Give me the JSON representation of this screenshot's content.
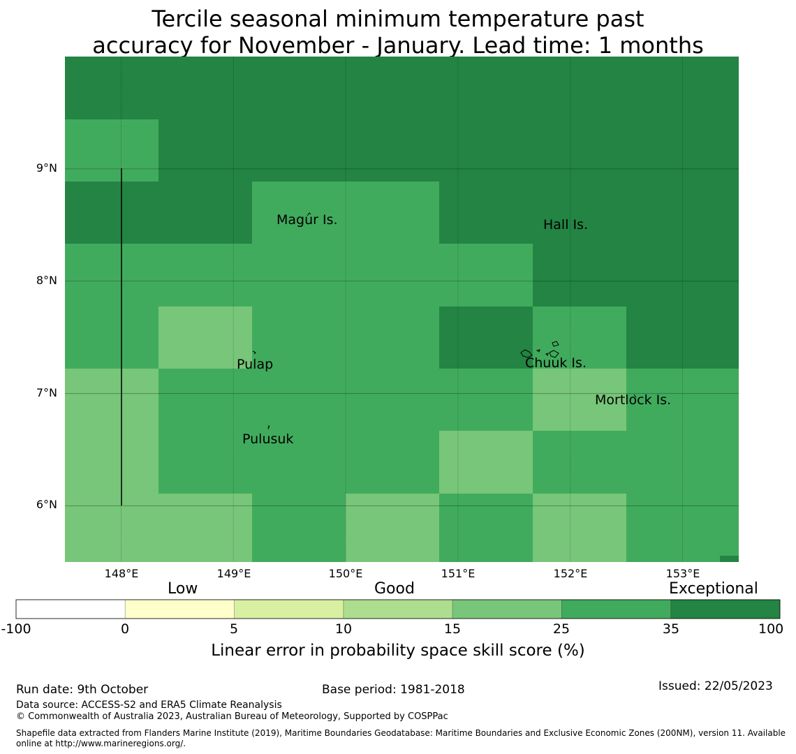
{
  "title": {
    "line1": "Tercile seasonal minimum temperature past",
    "line2": "accuracy for November - January. Lead time: 1 months"
  },
  "map": {
    "lon_range": [
      147.5,
      153.5
    ],
    "lat_range": [
      5.5,
      10.0
    ],
    "grid_cell_deg": 0.833,
    "cell_categories": [
      [
        "exceptional",
        "exceptional",
        "exceptional",
        "exceptional",
        "exceptional",
        "exceptional",
        "exceptional",
        "exceptional"
      ],
      [
        "good_high",
        "exceptional",
        "exceptional",
        "exceptional",
        "exceptional",
        "exceptional",
        "exceptional",
        "exceptional"
      ],
      [
        "exceptional",
        "exceptional",
        "good_high",
        "good_high",
        "exceptional",
        "exceptional",
        "exceptional",
        "exceptional"
      ],
      [
        "good_high",
        "good_high",
        "good_high",
        "good_high",
        "good_high",
        "exceptional",
        "exceptional",
        "exceptional"
      ],
      [
        "good_high",
        "good_mid",
        "good_high",
        "good_high",
        "exceptional",
        "good_high",
        "exceptional",
        "exceptional"
      ],
      [
        "good_mid",
        "good_high",
        "good_high",
        "good_high",
        "good_high",
        "good_mid",
        "good_high",
        "good_high"
      ],
      [
        "good_mid",
        "good_high",
        "good_high",
        "good_high",
        "good_mid",
        "good_high",
        "good_high",
        "good_high"
      ],
      [
        "good_mid",
        "good_mid",
        "good_high",
        "good_mid",
        "good_high",
        "good_mid",
        "good_high",
        "good_high"
      ]
    ],
    "lat_ticks": [
      "9°N",
      "8°N",
      "7°N",
      "6°N"
    ],
    "lon_ticks": [
      "148°E",
      "149°E",
      "150°E",
      "151°E",
      "152°E",
      "153°E"
    ],
    "places": [
      {
        "name": "Magur Is."
      },
      {
        "name": "Hall Is."
      },
      {
        "name": "Pulap"
      },
      {
        "name": "Chuuk Is."
      },
      {
        "name": "Mortlock Is."
      },
      {
        "name": "Pulusuk"
      }
    ]
  },
  "colorbar": {
    "categories": [
      "Low",
      "Good",
      "Exceptional"
    ],
    "ticks": [
      "-100",
      "0",
      "5",
      "10",
      "15",
      "25",
      "35",
      "100"
    ],
    "colors": [
      "#ffffff",
      "#ffffcc",
      "#d9f0a3",
      "#addd8e",
      "#78c679",
      "#41ab5d",
      "#238443"
    ],
    "label": "Linear error in probability space skill score (%)"
  },
  "palette": {
    "exceptional": "#238443",
    "good_high": "#41ab5d",
    "good_mid": "#78c679"
  },
  "footer": {
    "run_date": "Run date: 9th October",
    "base_period": "Base period: 1981-2018",
    "issued": "Issued: 22/05/2023",
    "data_source": "Data source: ACCESS-S2 and ERA5 Climate Reanalysis",
    "copyright": "© Commonwealth of Australia 2023, Australian Bureau of Meteorology, Supported by COSPPac",
    "shapefile_line1": "Shapefile data extracted from Flanders Marine Institute (2019), Maritime Boundaries Geodatabase: Maritime Boundaries and Exclusive Economic Zones (200NM), version 11. Available",
    "shapefile_line2": "online at http://www.marineregions.org/."
  }
}
